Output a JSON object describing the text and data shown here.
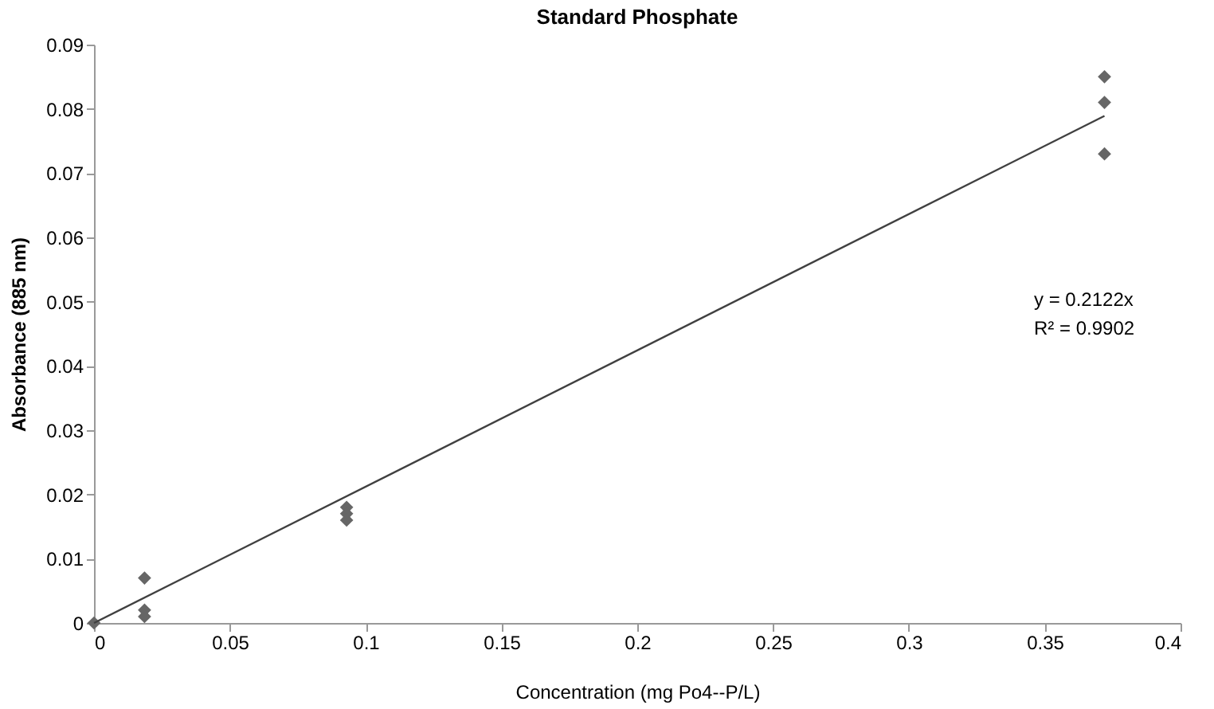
{
  "chart_data": {
    "type": "scatter",
    "title": "Standard Phosphate",
    "xlabel": "Concentration (mg Po4--P/L)",
    "ylabel": "Absorbance (885 nm)",
    "series": [
      {
        "color": "#666666",
        "marker": "diamond",
        "x": [
          0,
          0.0186,
          0.0186,
          0.0186,
          0.093,
          0.093,
          0.093,
          0.372,
          0.372,
          0.372
        ],
        "values": [
          0,
          0.007,
          0.002,
          0.001,
          0.018,
          0.017,
          0.016,
          0.085,
          0.081,
          0.073
        ]
      },
      {
        "type": "line",
        "color": "#404040",
        "marker": "none",
        "x": [
          0,
          0.372
        ],
        "values": [
          0,
          0.0789
        ]
      }
    ],
    "annotations": [
      "y = 0.2122x",
      "R² = 0.9902"
    ],
    "xlim": [
      0,
      0.4
    ],
    "xticks": [
      0,
      0.05,
      0.1,
      0.15,
      0.2,
      0.25,
      0.3,
      0.35,
      0.4
    ],
    "ylim": [
      0,
      0.09
    ],
    "yticks": [
      0,
      0.01,
      0.02,
      0.03,
      0.04,
      0.05,
      0.06,
      0.07,
      0.08,
      0.09
    ],
    "grid": false
  }
}
